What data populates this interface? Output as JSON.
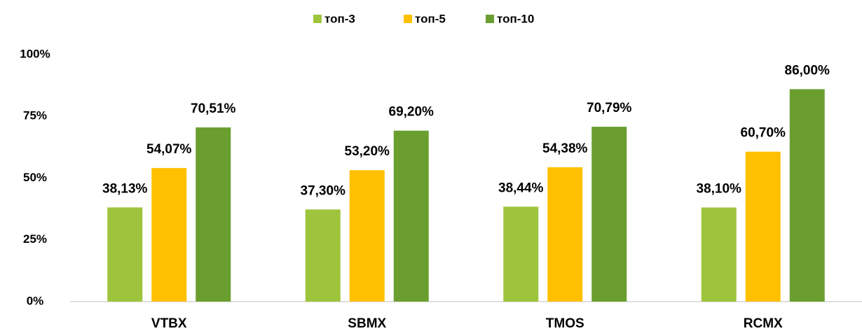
{
  "chart_data": {
    "type": "bar",
    "categories": [
      "VTBX",
      "SBMX",
      "TMOS",
      "RCMX"
    ],
    "series": [
      {
        "name": "топ-3",
        "color": "#9dc43c",
        "values": [
          38.13,
          37.3,
          38.44,
          38.1
        ],
        "value_labels": [
          "38,13%",
          "37,30%",
          "38,44%",
          "38,10%"
        ]
      },
      {
        "name": "топ-5",
        "color": "#ffc000",
        "values": [
          54.07,
          53.2,
          54.38,
          60.7
        ],
        "value_labels": [
          "54,07%",
          "53,20%",
          "54,38%",
          "60,70%"
        ]
      },
      {
        "name": "топ-10",
        "color": "#6a9f2f",
        "values": [
          70.51,
          69.2,
          70.79,
          86.0
        ],
        "value_labels": [
          "70,51%",
          "69,20%",
          "70,79%",
          "86,00%"
        ]
      }
    ],
    "ylim": [
      0,
      100
    ],
    "yticks": [
      {
        "value": 0,
        "label": "0%"
      },
      {
        "value": 25,
        "label": "25%"
      },
      {
        "value": 50,
        "label": "50%"
      },
      {
        "value": 75,
        "label": "75%"
      },
      {
        "value": 100,
        "label": "100%"
      }
    ],
    "grid": false,
    "legend": "top"
  }
}
